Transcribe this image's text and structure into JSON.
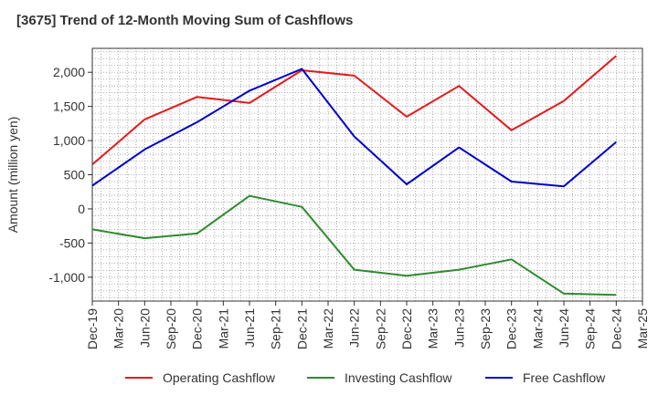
{
  "chart_data": {
    "type": "line",
    "title": "[3675]  Trend of 12-Month Moving Sum of Cashflows",
    "xlabel": "",
    "ylabel": "Amount (million yen)",
    "categories": [
      "Dec-19",
      "Mar-20",
      "Jun-20",
      "Sep-20",
      "Dec-20",
      "Mar-21",
      "Jun-21",
      "Sep-21",
      "Dec-21",
      "Mar-22",
      "Jun-22",
      "Sep-22",
      "Dec-22",
      "Mar-23",
      "Jun-23",
      "Sep-23",
      "Dec-23",
      "Mar-24",
      "Jun-24",
      "Sep-24",
      "Dec-24",
      "Mar-25"
    ],
    "ylim": [
      -1350,
      2350
    ],
    "yticks": [
      -1000,
      -500,
      0,
      500,
      1000,
      1500,
      2000
    ],
    "ytick_labels": [
      "-1,000",
      "-500",
      "0",
      "500",
      "1,000",
      "1,500",
      "2,000"
    ],
    "grid": true,
    "legend_position": "bottom",
    "series": [
      {
        "name": "Operating Cashflow",
        "color": "#e31a1c",
        "x": [
          "Dec-19",
          "Jun-20",
          "Dec-20",
          "Jun-21",
          "Dec-21",
          "Jun-22",
          "Dec-22",
          "Jun-23",
          "Dec-23",
          "Jun-24",
          "Dec-24"
        ],
        "values": [
          650,
          1310,
          1640,
          1550,
          2030,
          1950,
          1350,
          1800,
          1150,
          1580,
          2240
        ]
      },
      {
        "name": "Investing Cashflow",
        "color": "#2e8b2e",
        "x": [
          "Dec-19",
          "Jun-20",
          "Dec-20",
          "Jun-21",
          "Dec-21",
          "Jun-22",
          "Dec-22",
          "Jun-23",
          "Dec-23",
          "Jun-24",
          "Dec-24"
        ],
        "values": [
          -300,
          -430,
          -360,
          190,
          30,
          -890,
          -980,
          -890,
          -740,
          -1240,
          -1260
        ]
      },
      {
        "name": "Free Cashflow",
        "color": "#0000cc",
        "x": [
          "Dec-19",
          "Jun-20",
          "Dec-20",
          "Jun-21",
          "Dec-21",
          "Jun-22",
          "Dec-22",
          "Jun-23",
          "Dec-23",
          "Jun-24",
          "Dec-24"
        ],
        "values": [
          340,
          870,
          1270,
          1730,
          2050,
          1060,
          360,
          900,
          400,
          330,
          980
        ]
      }
    ]
  }
}
